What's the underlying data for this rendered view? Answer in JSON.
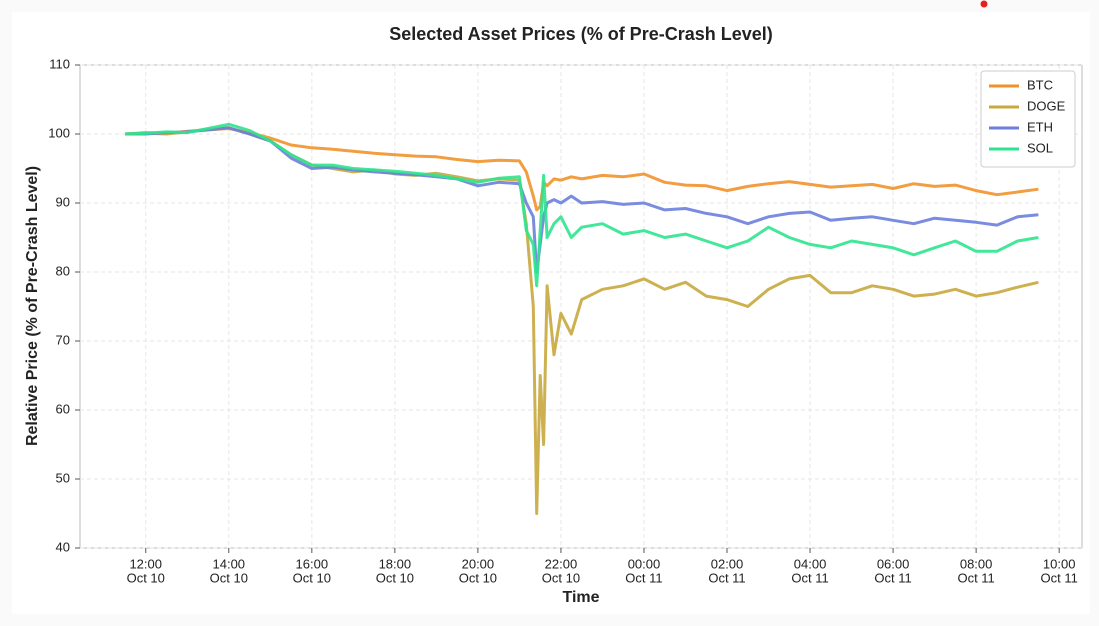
{
  "chart_data": {
    "type": "line",
    "title": "Selected Asset Prices (% of Pre-Crash Level)",
    "xlabel": "Time",
    "ylabel": "Relative Price (% of Pre-Crash Level)",
    "x": [
      "Oct 10 11:30",
      "Oct 10 12:00",
      "Oct 10 12:30",
      "Oct 10 13:00",
      "Oct 10 13:30",
      "Oct 10 14:00",
      "Oct 10 14:30",
      "Oct 10 15:00",
      "Oct 10 15:30",
      "Oct 10 16:00",
      "Oct 10 16:30",
      "Oct 10 17:00",
      "Oct 10 17:30",
      "Oct 10 18:00",
      "Oct 10 18:30",
      "Oct 10 19:00",
      "Oct 10 19:30",
      "Oct 10 20:00",
      "Oct 10 20:30",
      "Oct 10 21:00",
      "Oct 10 21:10",
      "Oct 10 21:20",
      "Oct 10 21:25",
      "Oct 10 21:30",
      "Oct 10 21:35",
      "Oct 10 21:40",
      "Oct 10 21:50",
      "Oct 10 22:00",
      "Oct 10 22:15",
      "Oct 10 22:30",
      "Oct 10 23:00",
      "Oct 10 23:30",
      "Oct 11 00:00",
      "Oct 11 00:30",
      "Oct 11 01:00",
      "Oct 11 01:30",
      "Oct 11 02:00",
      "Oct 11 02:30",
      "Oct 11 03:00",
      "Oct 11 03:30",
      "Oct 11 04:00",
      "Oct 11 04:30",
      "Oct 11 05:00",
      "Oct 11 05:30",
      "Oct 11 06:00",
      "Oct 11 06:30",
      "Oct 11 07:00",
      "Oct 11 07:30",
      "Oct 11 08:00",
      "Oct 11 08:30",
      "Oct 11 09:00",
      "Oct 11 09:30"
    ],
    "series": [
      {
        "name": "BTC",
        "color": "#f0922b",
        "values": [
          100,
          100.2,
          100.1,
          100.4,
          100.6,
          100.8,
          100.2,
          99.4,
          98.4,
          98.0,
          97.8,
          97.5,
          97.2,
          97.0,
          96.8,
          96.7,
          96.3,
          96.0,
          96.2,
          96.1,
          94.5,
          91,
          89,
          89.5,
          93,
          92.5,
          93.5,
          93.3,
          93.8,
          93.5,
          94,
          93.8,
          94.2,
          93,
          92.6,
          92.5,
          91.8,
          92.4,
          92.8,
          93.1,
          92.7,
          92.3,
          92.5,
          92.7,
          92.1,
          92.8,
          92.4,
          92.6,
          91.8,
          91.2,
          91.6,
          92.0
        ]
      },
      {
        "name": "DOGE",
        "color": "#c8a93e",
        "values": [
          100,
          100.1,
          100,
          100.3,
          100.7,
          100.9,
          100,
          99,
          97,
          95.5,
          95,
          94.5,
          94.8,
          94.2,
          94,
          94.3,
          93.8,
          93.2,
          93.5,
          93.3,
          87,
          75,
          45,
          65,
          55,
          78,
          68,
          74,
          71,
          76,
          77.5,
          78,
          79,
          77.5,
          78.5,
          76.5,
          76,
          75,
          77.5,
          79,
          79.5,
          77,
          77,
          78,
          77.5,
          76.5,
          76.8,
          77.5,
          76.5,
          77,
          77.8,
          78.5
        ]
      },
      {
        "name": "ETH",
        "color": "#6c7fdb",
        "values": [
          100,
          100,
          100.2,
          100.3,
          100.6,
          100.9,
          100,
          99,
          96.5,
          95,
          95.2,
          94.8,
          94.5,
          94.3,
          94.1,
          93.8,
          93.5,
          92.5,
          93,
          92.8,
          90,
          88,
          80,
          84,
          88,
          90,
          90.5,
          90,
          91,
          90,
          90.2,
          89.8,
          90,
          89,
          89.2,
          88.5,
          88,
          87,
          88,
          88.5,
          88.7,
          87.5,
          87.8,
          88,
          87.5,
          87,
          87.8,
          87.5,
          87.2,
          86.8,
          88,
          88.3
        ]
      },
      {
        "name": "SOL",
        "color": "#2ee48e",
        "values": [
          100,
          100.1,
          100.3,
          100.2,
          100.8,
          101.4,
          100.5,
          99,
          97,
          95.5,
          95.5,
          95,
          94.8,
          94.6,
          94.3,
          94,
          93.5,
          93,
          93.6,
          93.8,
          86,
          84,
          78,
          86,
          94,
          85,
          87,
          88,
          85,
          86.5,
          87,
          85.5,
          86,
          85,
          85.5,
          84.5,
          83.5,
          84.5,
          86.5,
          85,
          84,
          83.5,
          84.5,
          84,
          83.5,
          82.5,
          83.5,
          84.5,
          83,
          83,
          84.5,
          85
        ]
      }
    ],
    "xlim": [
      "Oct 10 10:25",
      "Oct 11 10:33"
    ],
    "xticks": [
      {
        "value": "Oct 10 12:00",
        "label": [
          "12:00",
          "Oct 10"
        ]
      },
      {
        "value": "Oct 10 14:00",
        "label": [
          "14:00",
          "Oct 10"
        ]
      },
      {
        "value": "Oct 10 16:00",
        "label": [
          "16:00",
          "Oct 10"
        ]
      },
      {
        "value": "Oct 10 18:00",
        "label": [
          "18:00",
          "Oct 10"
        ]
      },
      {
        "value": "Oct 10 20:00",
        "label": [
          "20:00",
          "Oct 10"
        ]
      },
      {
        "value": "Oct 10 22:00",
        "label": [
          "22:00",
          "Oct 10"
        ]
      },
      {
        "value": "Oct 11 00:00",
        "label": [
          "00:00",
          "Oct 11"
        ]
      },
      {
        "value": "Oct 11 02:00",
        "label": [
          "02:00",
          "Oct 11"
        ]
      },
      {
        "value": "Oct 11 04:00",
        "label": [
          "04:00",
          "Oct 11"
        ]
      },
      {
        "value": "Oct 11 06:00",
        "label": [
          "06:00",
          "Oct 11"
        ]
      },
      {
        "value": "Oct 11 08:00",
        "label": [
          "08:00",
          "Oct 11"
        ]
      },
      {
        "value": "Oct 11 10:00",
        "label": [
          "10:00",
          "Oct 11"
        ]
      }
    ],
    "ylim": [
      40,
      110
    ],
    "yticks": [
      40,
      50,
      60,
      70,
      80,
      90,
      100,
      110
    ],
    "grid": true,
    "legend": "upper right"
  }
}
